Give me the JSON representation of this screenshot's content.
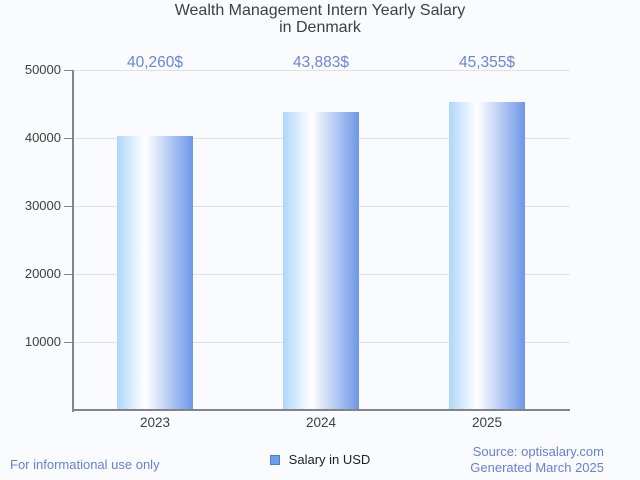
{
  "title": {
    "line1": "Wealth Management Intern Yearly Salary",
    "line2": "in Denmark"
  },
  "chart_data": {
    "type": "bar",
    "title": "Wealth Management Intern Yearly Salary in Denmark",
    "categories": [
      "2023",
      "2024",
      "2025"
    ],
    "series": [
      {
        "name": "Salary in USD",
        "values": [
          40260,
          43883,
          45355
        ]
      }
    ],
    "value_labels": [
      "40,260$",
      "43,883$",
      "45,355$"
    ],
    "xlabel": "",
    "ylabel": "",
    "ylim": [
      0,
      50000
    ],
    "y_ticks": [
      10000,
      20000,
      30000,
      40000,
      50000
    ],
    "y_tick_labels": [
      "10000",
      "20000",
      "30000",
      "40000",
      "50000"
    ],
    "grid": true,
    "legend_position": "bottom",
    "bar_gradient": [
      "#aed6fb",
      "#ffffff",
      "#6e97e8"
    ]
  },
  "legend": {
    "label": "Salary in USD",
    "swatch_fill": "#6c9ded",
    "swatch_border": "#4a7ed2"
  },
  "footer": {
    "note": "For informational use only",
    "source": "Source: optisalary.com",
    "generated": "Generated March 2025"
  },
  "colors": {
    "background": "#fafbfe",
    "title_text": "#3d4043",
    "value_label_text": "#6b84d9",
    "footer_text": "#6680d5",
    "axis": "#828487",
    "gridline": "#e0e0e0",
    "tick_label_text": "#3e3e3e"
  }
}
